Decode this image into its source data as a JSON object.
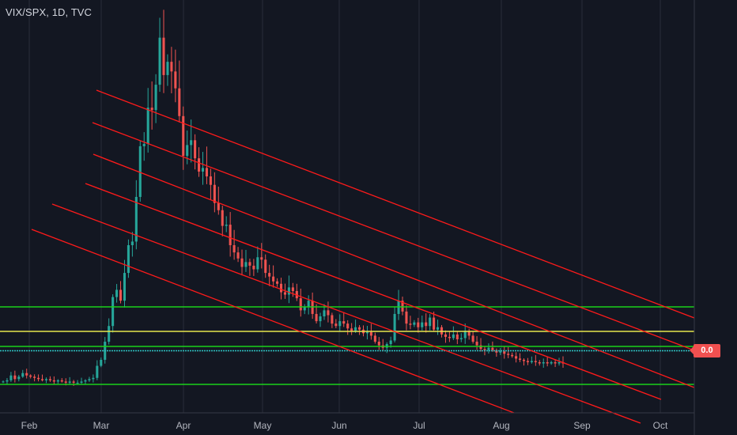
{
  "header": {
    "title": "VIX/SPX, 1D, TVC"
  },
  "price_label": "0.0",
  "colors": {
    "background": "#131722",
    "grid": "#2a2e39",
    "up": "#26a69a",
    "down": "#ef5350",
    "channel": "#ff1a1a",
    "support_green": "#1ad11a",
    "support_yellow": "#e6e64d",
    "support_cyan": "#2ec4c4",
    "price_tag": "#f05050"
  },
  "chart_data": {
    "type": "candlestick",
    "title": "VIX/SPX, 1D, TVC",
    "x_ticks": [
      "Feb",
      "Mar",
      "Apr",
      "May",
      "Jun",
      "Jul",
      "Aug",
      "Sep",
      "Oct"
    ],
    "grid": true,
    "right_axis_label": "0.0",
    "candles_approx_close": [
      0.0045,
      0.0046,
      0.005,
      0.0047,
      0.0049,
      0.0052,
      0.005,
      0.0049,
      0.0048,
      0.0047,
      0.0046,
      0.0047,
      0.0046,
      0.0045,
      0.0046,
      0.0045,
      0.0044,
      0.0045,
      0.0044,
      0.0044,
      0.0045,
      0.0046,
      0.0047,
      0.0048,
      0.0058,
      0.0063,
      0.0078,
      0.0091,
      0.0115,
      0.0121,
      0.0112,
      0.0135,
      0.0158,
      0.0161,
      0.0198,
      0.024,
      0.0242,
      0.0272,
      0.027,
      0.0291,
      0.033,
      0.0299,
      0.031,
      0.0302,
      0.0288,
      0.0265,
      0.0232,
      0.0241,
      0.0245,
      0.023,
      0.0219,
      0.0222,
      0.0215,
      0.0208,
      0.0193,
      0.0187,
      0.0174,
      0.0175,
      0.0158,
      0.0152,
      0.0147,
      0.014,
      0.0144,
      0.0141,
      0.0138,
      0.0148,
      0.0146,
      0.0135,
      0.0132,
      0.0128,
      0.0126,
      0.0119,
      0.0117,
      0.0123,
      0.012,
      0.0114,
      0.0104,
      0.0107,
      0.0112,
      0.0101,
      0.0095,
      0.0099,
      0.0104,
      0.01,
      0.0093,
      0.0091,
      0.0095,
      0.0093,
      0.0089,
      0.0087,
      0.009,
      0.0088,
      0.0085,
      0.0086,
      0.0083,
      0.0078,
      0.0075,
      0.0073,
      0.0076,
      0.0079,
      0.0101,
      0.0112,
      0.0103,
      0.0093,
      0.0092,
      0.0094,
      0.009,
      0.0094,
      0.0091,
      0.0098,
      0.0088,
      0.009,
      0.0084,
      0.0082,
      0.0081,
      0.0084,
      0.008,
      0.0081,
      0.0087,
      0.0083,
      0.0078,
      0.0075,
      0.0072,
      0.0071,
      0.0073,
      0.0071,
      0.0069,
      0.007,
      0.0068,
      0.0067,
      0.0066,
      0.0064,
      0.0063,
      0.0062,
      0.0061,
      0.0062,
      0.0061,
      0.006,
      0.0061,
      0.006,
      0.0061,
      0.006,
      0.0061,
      0.006
    ]
  }
}
